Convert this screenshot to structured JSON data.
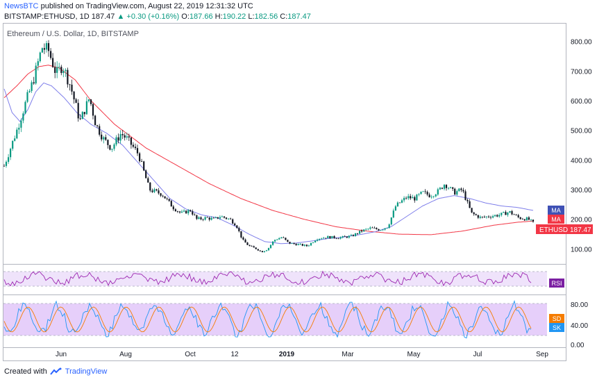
{
  "header": {
    "source": "NewsBTC",
    "published_text": "published on TradingView.com, August 22, 2019 12:31:32 UTC",
    "symbol": "BITSTAMP:ETHUSD, 1D",
    "last": "187.47",
    "change": "+0.30 (+0.16%)",
    "o_label": "O:",
    "o": "187.66",
    "h_label": "H:",
    "h": "190.22",
    "l_label": "L:",
    "l": "182.56",
    "c_label": "C:",
    "c": "187.47"
  },
  "footer": {
    "created_with": "Created with",
    "brand": "TradingView"
  },
  "colors": {
    "up": "#089981",
    "down": "#f23645",
    "ma_slow": "#f23645",
    "ma_fast": "#7e7eea",
    "osc_band": "#e6cffa",
    "accent": "#2962ff"
  },
  "chart_data": {
    "type": "candlestick",
    "title": "Ethereum / U.S. Dollar, 1D, BITSTAMP",
    "price_axis": {
      "range": [
        60,
        860
      ],
      "ticks": [
        "800.00",
        "700.00",
        "600.00",
        "500.00",
        "400.00",
        "300.00",
        "200.00",
        "100.00"
      ]
    },
    "time_axis": {
      "labels": [
        "Jun",
        "Aug",
        "Oct",
        "12",
        "2019",
        "Mar",
        "May",
        "Jul",
        "Sep"
      ]
    },
    "close_path": [
      [
        0,
        380
      ],
      [
        8,
        500
      ],
      [
        14,
        600
      ],
      [
        18,
        660
      ],
      [
        24,
        780
      ],
      [
        28,
        770
      ],
      [
        33,
        690
      ],
      [
        37,
        720
      ],
      [
        42,
        650
      ],
      [
        48,
        530
      ],
      [
        54,
        610
      ],
      [
        58,
        520
      ],
      [
        63,
        470
      ],
      [
        68,
        440
      ],
      [
        74,
        490
      ],
      [
        78,
        470
      ],
      [
        85,
        420
      ],
      [
        92,
        300
      ],
      [
        100,
        285
      ],
      [
        107,
        240
      ],
      [
        112,
        220
      ],
      [
        118,
        230
      ],
      [
        122,
        200
      ],
      [
        128,
        205
      ],
      [
        133,
        200
      ],
      [
        137,
        210
      ],
      [
        143,
        200
      ],
      [
        147,
        180
      ],
      [
        151,
        130
      ],
      [
        155,
        110
      ],
      [
        160,
        100
      ],
      [
        163,
        90
      ],
      [
        167,
        100
      ],
      [
        171,
        130
      ],
      [
        176,
        140
      ],
      [
        180,
        120
      ],
      [
        186,
        115
      ],
      [
        192,
        110
      ],
      [
        198,
        135
      ],
      [
        205,
        140
      ],
      [
        212,
        138
      ],
      [
        220,
        143
      ],
      [
        226,
        160
      ],
      [
        232,
        170
      ],
      [
        238,
        165
      ],
      [
        243,
        175
      ],
      [
        248,
        245
      ],
      [
        255,
        275
      ],
      [
        260,
        270
      ],
      [
        265,
        290
      ],
      [
        270,
        280
      ],
      [
        275,
        295
      ],
      [
        279,
        320
      ],
      [
        285,
        290
      ],
      [
        290,
        300
      ],
      [
        296,
        220
      ],
      [
        302,
        205
      ],
      [
        307,
        210
      ],
      [
        314,
        215
      ],
      [
        320,
        225
      ],
      [
        326,
        205
      ],
      [
        332,
        200
      ],
      [
        335,
        187.47
      ]
    ],
    "ma_slow": [
      [
        0,
        610
      ],
      [
        8,
        650
      ],
      [
        15,
        690
      ],
      [
        22,
        715
      ],
      [
        28,
        720
      ],
      [
        35,
        710
      ],
      [
        45,
        670
      ],
      [
        55,
        600
      ],
      [
        70,
        520
      ],
      [
        90,
        440
      ],
      [
        110,
        380
      ],
      [
        130,
        320
      ],
      [
        150,
        270
      ],
      [
        170,
        230
      ],
      [
        190,
        200
      ],
      [
        210,
        175
      ],
      [
        230,
        160
      ],
      [
        250,
        150
      ],
      [
        270,
        148
      ],
      [
        290,
        160
      ],
      [
        310,
        180
      ],
      [
        325,
        190
      ],
      [
        335,
        194
      ]
    ],
    "ma_fast": [
      [
        0,
        640
      ],
      [
        5,
        560
      ],
      [
        10,
        530
      ],
      [
        15,
        570
      ],
      [
        20,
        630
      ],
      [
        25,
        660
      ],
      [
        30,
        650
      ],
      [
        38,
        610
      ],
      [
        46,
        560
      ],
      [
        55,
        520
      ],
      [
        65,
        490
      ],
      [
        75,
        450
      ],
      [
        85,
        390
      ],
      [
        95,
        330
      ],
      [
        105,
        270
      ],
      [
        115,
        235
      ],
      [
        125,
        215
      ],
      [
        135,
        205
      ],
      [
        145,
        180
      ],
      [
        155,
        150
      ],
      [
        165,
        125
      ],
      [
        175,
        118
      ],
      [
        185,
        120
      ],
      [
        195,
        127
      ],
      [
        205,
        135
      ],
      [
        215,
        140
      ],
      [
        225,
        148
      ],
      [
        235,
        158
      ],
      [
        245,
        175
      ],
      [
        255,
        210
      ],
      [
        265,
        245
      ],
      [
        275,
        270
      ],
      [
        285,
        280
      ],
      [
        295,
        270
      ],
      [
        305,
        255
      ],
      [
        315,
        245
      ],
      [
        325,
        240
      ],
      [
        335,
        230
      ]
    ],
    "osc_axis": {
      "ticks": [
        "80.00",
        "40.00",
        "0.00"
      ]
    },
    "labels": {
      "ma1": "MA",
      "ma2": "MA",
      "ticker": "ETHUSD",
      "ticker_value": "187.47",
      "rsi": "RSI",
      "sd": "SD",
      "sk": "SK"
    }
  }
}
